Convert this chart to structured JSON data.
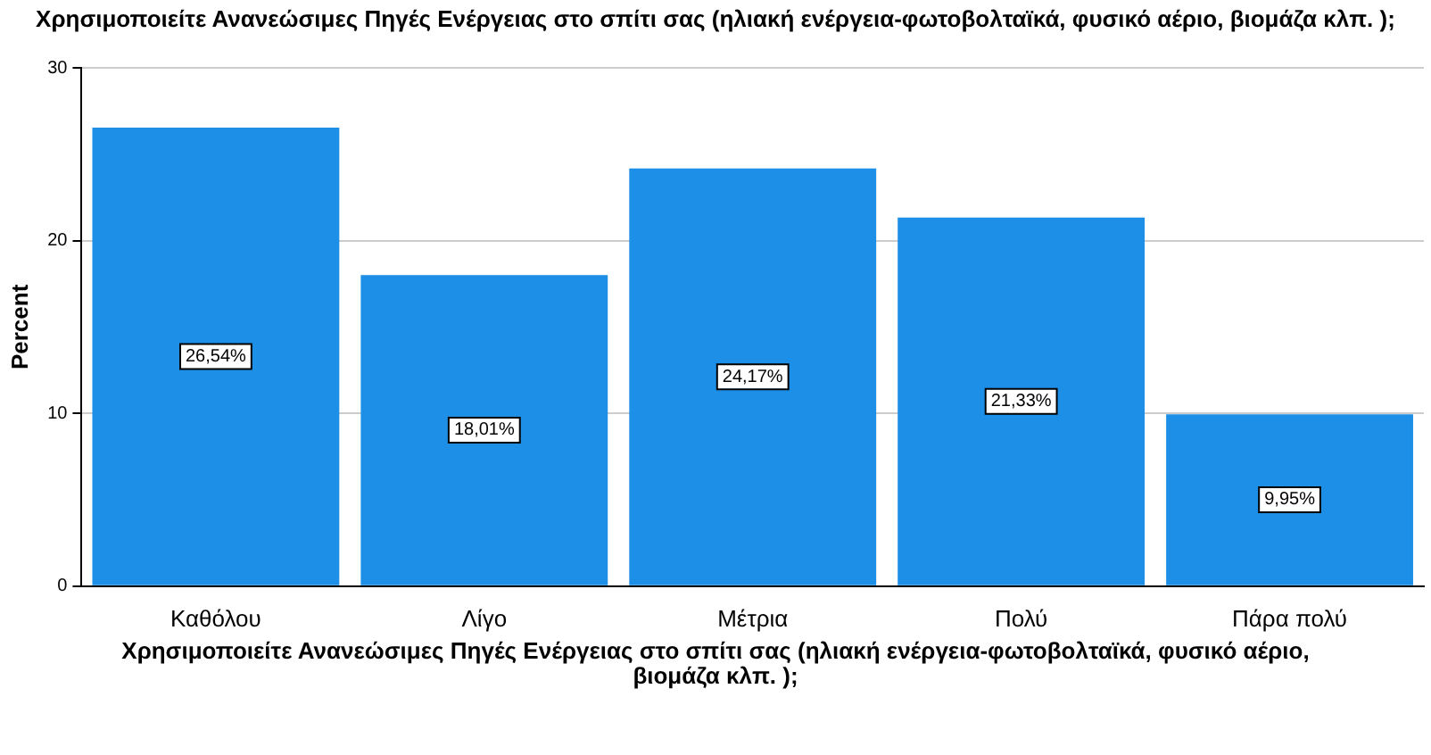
{
  "chart_data": {
    "type": "bar",
    "title": "Χρησιμοποιείτε Ανανεώσιμες Πηγές Ενέργειας στο σπίτι σας (ηλιακή ενέργεια-φωτοβολταϊκά, φυσικό αέριο, βιομάζα κλπ. );",
    "xlabel": "Χρησιμοποιείτε Ανανεώσιμες Πηγές Ενέργειας στο σπίτι σας (ηλιακή ενέργεια-φωτοβολταϊκά, φυσικό αέριο, βιομάζα κλπ. );",
    "ylabel": "Percent",
    "categories": [
      "Καθόλου",
      "Λίγο",
      "Μέτρια",
      "Πολύ",
      "Πάρα πολύ"
    ],
    "values": [
      26.54,
      18.01,
      24.17,
      21.33,
      9.95
    ],
    "value_labels": [
      "26,54%",
      "18,01%",
      "24,17%",
      "21,33%",
      "9,95%"
    ],
    "color": "#1e8fe6",
    "ylim": [
      0,
      30
    ],
    "yticks": [
      0,
      10,
      20,
      30
    ],
    "grid": "y",
    "legend": false
  }
}
